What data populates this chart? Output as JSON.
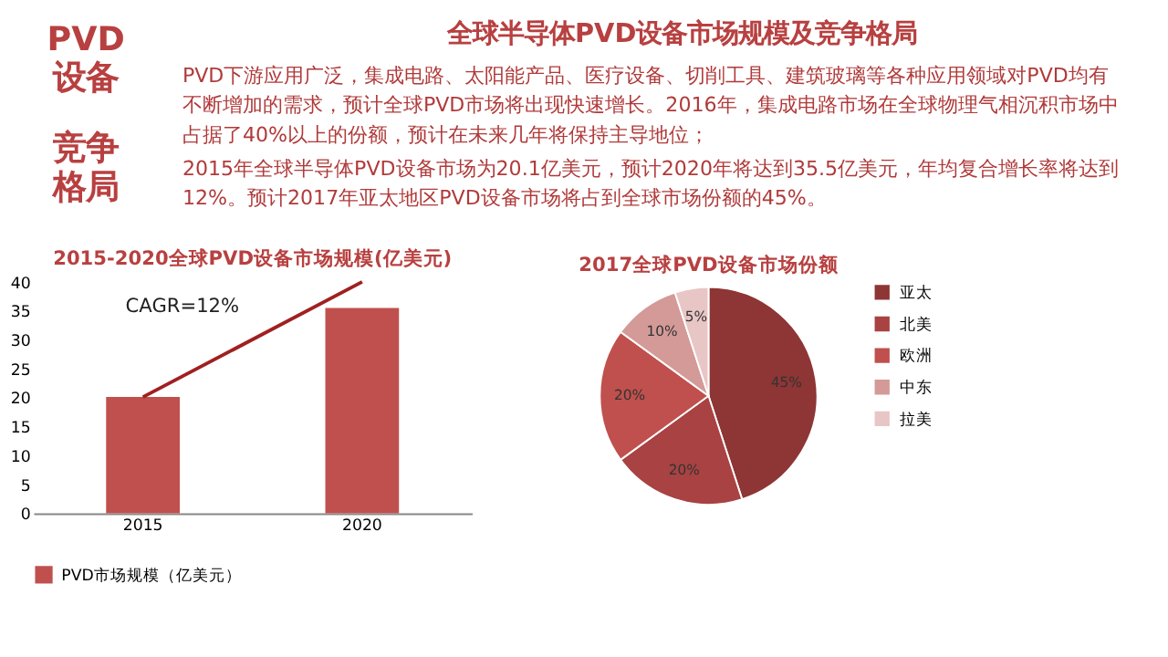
{
  "chart_data": [
    {
      "type": "other",
      "title": "全球半导体PVD设备市场规模及竞争格局",
      "annotations": [
        "PVD设备",
        "竞争格局",
        "PVD下游应用广泛，集成电路、太阳能产品、医疗设备、切削工具、建筑玻璃等各种应用领域对PVD均有不断增加的需求，预计全球PVD市场将出现快速增长。2016年，集成电路市场在全球物理气相沉积市场中占据了40%以上的份额，预计在未来几年将保持主导地位；",
        "2015年全球半导体PVD设备市场为20.1亿美元，预计2020年将达到35.5亿美元，年均复合增长率将达到12%。预计2017年亚太地区PVD设备市场将占到全球市场份额的45%。"
      ]
    },
    {
      "type": "bar",
      "title": "2015-2020全球PVD设备市场规模(亿美元)",
      "categories": [
        "2015",
        "2020"
      ],
      "series": [
        {
          "name": "PVD市场规模（亿美元）",
          "color": "#c0504d",
          "values": [
            20.1,
            35.5
          ]
        }
      ],
      "ylim": [
        0,
        40
      ],
      "yticks": [
        0,
        5,
        10,
        15,
        20,
        25,
        30,
        35,
        40
      ],
      "grid": false,
      "legend": "bottom",
      "annotations": [
        "CAGR=12%"
      ]
    },
    {
      "type": "pie",
      "title": "2017全球PVD设备市场份额",
      "categories": [
        "亚太",
        "北美",
        "欧洲",
        "中东",
        "拉美"
      ],
      "values": [
        45,
        20,
        20,
        10,
        5
      ],
      "colors": [
        "#8e3535",
        "#a94242",
        "#c0504d",
        "#d39a98",
        "#e8c6c5"
      ],
      "value_labels": [
        "45%",
        "20%",
        "20%",
        "10%",
        "5%"
      ],
      "legend": "right"
    }
  ]
}
